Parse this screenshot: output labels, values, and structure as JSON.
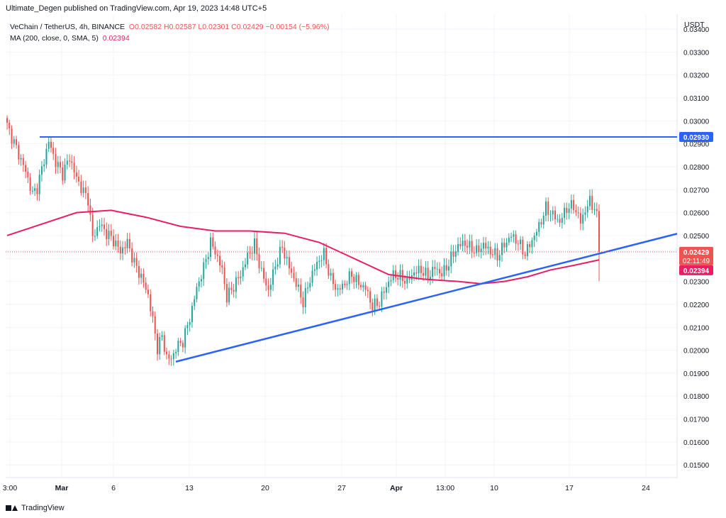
{
  "header": {
    "published": "Ultimate_Degen published on TradingView.com, Apr 19, 2023 14:48 UTC+5"
  },
  "legend": {
    "symbol": "VeChain / TetherUS, 4h, BINANCE",
    "ohlc": "O0.02582 H0.02587 L0.02301 C0.02429 −0.00154 (−5.96%)",
    "ma_label": "MA (200, close, 0, SMA, 5)",
    "ma_value": "0.02394"
  },
  "footer": {
    "brand": "TradingView"
  },
  "colors": {
    "up": "#26a69a",
    "down": "#ef5350",
    "ma": "#e91e63",
    "trend": "#2962ff",
    "resistance": "#2962ff",
    "grid": "#f0f3fa"
  },
  "chart_data": {
    "type": "candlestick",
    "currency": "USDT",
    "ylim": [
      0.01445,
      0.03465
    ],
    "y_ticks": [
      "0.03400",
      "0.03300",
      "0.03200",
      "0.03100",
      "0.03000",
      "0.02900",
      "0.02800",
      "0.02700",
      "0.02600",
      "0.02500",
      "0.02400",
      "0.02300",
      "0.02200",
      "0.02100",
      "0.02000",
      "0.01900",
      "0.01800",
      "0.01700",
      "0.01600",
      "0.01500"
    ],
    "x_ticks": [
      "3:00",
      "Mar",
      "6",
      "13",
      "20",
      "27",
      "Apr",
      "13:00",
      "10",
      "17",
      "24"
    ],
    "x_tick_bold": [
      false,
      true,
      false,
      false,
      false,
      false,
      true,
      false,
      false,
      false,
      false
    ],
    "price_tags": [
      {
        "label": "0.02930",
        "price": 0.0293,
        "color": "#2962ff"
      },
      {
        "label": "0.02429",
        "sublabel": "02:11:49",
        "price": 0.02429,
        "color": "#ef5350"
      },
      {
        "label": "0.02394",
        "price": 0.02394,
        "color": "#e91e63"
      }
    ],
    "resistance_level": 0.0293,
    "trendline_pivots": [
      [
        0.0195,
        0.0195
      ]
    ],
    "close_path": [
      [
        0,
        0.0298
      ],
      [
        4,
        0.0288
      ],
      [
        8,
        0.0278
      ],
      [
        11,
        0.0268
      ],
      [
        13,
        0.0271
      ],
      [
        16,
        0.0283
      ],
      [
        18,
        0.0291
      ],
      [
        21,
        0.0282
      ],
      [
        24,
        0.0277
      ],
      [
        27,
        0.0284
      ],
      [
        30,
        0.0275
      ],
      [
        33,
        0.0269
      ],
      [
        35,
        0.0266
      ],
      [
        37,
        0.0249
      ],
      [
        40,
        0.0255
      ],
      [
        43,
        0.0251
      ],
      [
        46,
        0.0248
      ],
      [
        49,
        0.0243
      ],
      [
        52,
        0.0247
      ],
      [
        55,
        0.0238
      ],
      [
        58,
        0.0232
      ],
      [
        61,
        0.0224
      ],
      [
        63,
        0.0213
      ],
      [
        65,
        0.0201
      ],
      [
        67,
        0.0206
      ],
      [
        69,
        0.0197
      ],
      [
        71,
        0.0196
      ],
      [
        73,
        0.0201
      ],
      [
        76,
        0.0204
      ],
      [
        79,
        0.0214
      ],
      [
        82,
        0.0227
      ],
      [
        85,
        0.0236
      ],
      [
        88,
        0.0247
      ],
      [
        90,
        0.0243
      ],
      [
        93,
        0.0235
      ],
      [
        95,
        0.0223
      ],
      [
        98,
        0.0228
      ],
      [
        101,
        0.0233
      ],
      [
        104,
        0.0241
      ],
      [
        107,
        0.0246
      ],
      [
        110,
        0.0234
      ],
      [
        113,
        0.0226
      ],
      [
        116,
        0.0237
      ],
      [
        119,
        0.0245
      ],
      [
        122,
        0.0236
      ],
      [
        125,
        0.0229
      ],
      [
        128,
        0.0221
      ],
      [
        131,
        0.0231
      ],
      [
        134,
        0.0238
      ],
      [
        137,
        0.0242
      ],
      [
        140,
        0.0231
      ],
      [
        143,
        0.0226
      ],
      [
        146,
        0.0229
      ],
      [
        149,
        0.0233
      ],
      [
        152,
        0.0229
      ],
      [
        155,
        0.0227
      ],
      [
        158,
        0.0219
      ],
      [
        161,
        0.0221
      ],
      [
        164,
        0.0228
      ],
      [
        167,
        0.0233
      ],
      [
        170,
        0.0232
      ],
      [
        173,
        0.023
      ],
      [
        176,
        0.0234
      ],
      [
        179,
        0.0235
      ],
      [
        182,
        0.0232
      ],
      [
        185,
        0.0236
      ],
      [
        188,
        0.0233
      ],
      [
        191,
        0.0238
      ],
      [
        194,
        0.0244
      ],
      [
        197,
        0.0247
      ],
      [
        200,
        0.0245
      ],
      [
        203,
        0.0243
      ],
      [
        206,
        0.0246
      ],
      [
        209,
        0.0243
      ],
      [
        212,
        0.0241
      ],
      [
        215,
        0.0246
      ],
      [
        218,
        0.025
      ],
      [
        221,
        0.0247
      ],
      [
        224,
        0.0242
      ],
      [
        227,
        0.0248
      ],
      [
        230,
        0.0254
      ],
      [
        233,
        0.0262
      ],
      [
        236,
        0.0259
      ],
      [
        239,
        0.0256
      ],
      [
        242,
        0.0262
      ],
      [
        245,
        0.0263
      ],
      [
        248,
        0.0256
      ],
      [
        250,
        0.0261
      ],
      [
        252,
        0.0265
      ],
      [
        254,
        0.0262
      ],
      [
        255,
        0.0258
      ],
      [
        256,
        0.0243
      ]
    ],
    "candle_span": 256,
    "ma_path": [
      [
        0,
        0.025
      ],
      [
        15,
        0.0255
      ],
      [
        30,
        0.026
      ],
      [
        45,
        0.0261
      ],
      [
        60,
        0.0258
      ],
      [
        75,
        0.0254
      ],
      [
        90,
        0.0252
      ],
      [
        105,
        0.0252
      ],
      [
        120,
        0.0251
      ],
      [
        135,
        0.0247
      ],
      [
        150,
        0.024
      ],
      [
        165,
        0.0233
      ],
      [
        180,
        0.0231
      ],
      [
        195,
        0.023
      ],
      [
        205,
        0.0229
      ],
      [
        215,
        0.023
      ],
      [
        225,
        0.0232
      ],
      [
        235,
        0.0235
      ],
      [
        245,
        0.0237
      ],
      [
        256,
        0.02394
      ]
    ]
  }
}
